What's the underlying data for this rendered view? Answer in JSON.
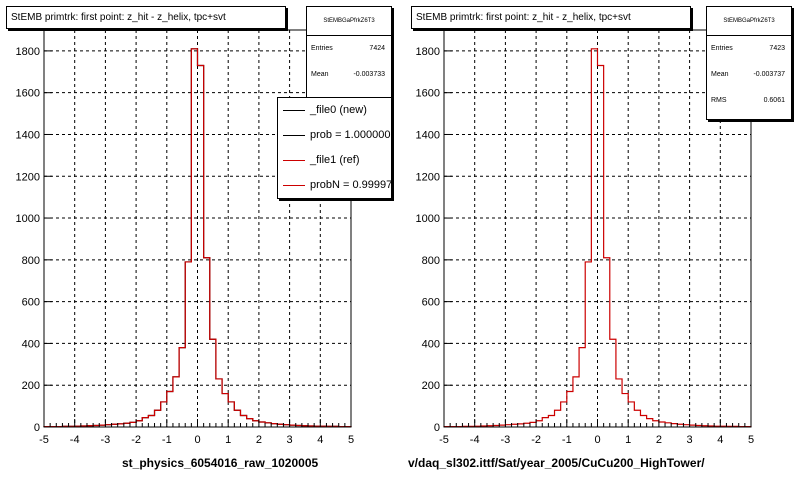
{
  "pads": [
    {
      "title": "StEMB primtrk: first point: z_hit - z_helix, tpc+svt",
      "stats": {
        "name": "StEMBGaPfrkZ6T3",
        "rows": [
          {
            "key": "Entries",
            "value": "7424"
          },
          {
            "key": "Mean",
            "value": "-0.003733"
          }
        ]
      },
      "legend": [
        {
          "label": "_file0 (new)",
          "color": "#000000"
        },
        {
          "label": "prob = 1.000000",
          "color": "#000000"
        },
        {
          "label": "_file1 (ref)",
          "color": "#cc0000"
        },
        {
          "label": "probN = 0.99997",
          "color": "#cc0000"
        }
      ],
      "xlabel": "st_physics_6054016_raw_1020005"
    },
    {
      "title": "StEMB primtrk: first point: z_hit - z_helix, tpc+svt",
      "stats": {
        "name": "StEMBGaPfrkZ6T3",
        "rows": [
          {
            "key": "Entries",
            "value": "7423"
          },
          {
            "key": "Mean",
            "value": "-0.003737"
          },
          {
            "key": "RMS",
            "value": "0.6061"
          }
        ]
      },
      "legend": [],
      "xlabel": "v/daq_sl302.ittf/Sat/year_2005/CuCu200_HighTower/"
    }
  ],
  "colors": {
    "new": "#000000",
    "ref": "#cc0000",
    "frame": "#000000"
  },
  "chart_data": [
    {
      "type": "histogram",
      "title": "StEMB primtrk: first point: z_hit - z_helix, tpc+svt",
      "xlabel": "st_physics_6054016_raw_1020005",
      "ylabel": "",
      "xlim": [
        -5,
        5
      ],
      "ylim": [
        0,
        1900
      ],
      "x_ticks": [
        -5,
        -4,
        -3,
        -2,
        -1,
        0,
        1,
        2,
        3,
        4,
        5
      ],
      "y_ticks": [
        0,
        200,
        400,
        600,
        800,
        1000,
        1200,
        1400,
        1600,
        1800
      ],
      "grid": true,
      "bin_edges": [
        -5,
        -4.8,
        -4.6,
        -4.4,
        -4.2,
        -4,
        -3.8,
        -3.6,
        -3.4,
        -3.2,
        -3,
        -2.8,
        -2.6,
        -2.4,
        -2.2,
        -2,
        -1.8,
        -1.6,
        -1.4,
        -1.2,
        -1,
        -0.8,
        -0.6,
        -0.4,
        -0.2,
        0,
        0.2,
        0.4,
        0.6,
        0.8,
        1,
        1.2,
        1.4,
        1.6,
        1.8,
        2,
        2.2,
        2.4,
        2.6,
        2.8,
        3,
        3.2,
        3.4,
        3.6,
        3.8,
        4,
        4.2,
        4.4,
        4.6,
        4.8,
        5
      ],
      "series": [
        {
          "name": "_file0 (new)",
          "color": "#000000",
          "values": [
            2,
            2,
            2,
            3,
            3,
            4,
            5,
            6,
            7,
            9,
            11,
            13,
            15,
            18,
            22,
            30,
            45,
            55,
            80,
            120,
            170,
            240,
            380,
            790,
            1810,
            1730,
            810,
            420,
            230,
            160,
            120,
            80,
            55,
            40,
            30,
            24,
            20,
            16,
            13,
            11,
            9,
            7,
            6,
            5,
            4,
            4,
            3,
            3,
            2,
            2
          ]
        },
        {
          "name": "_file1 (ref)",
          "color": "#cc0000",
          "values": [
            2,
            2,
            2,
            3,
            3,
            4,
            5,
            6,
            7,
            9,
            11,
            13,
            15,
            18,
            22,
            30,
            45,
            55,
            80,
            120,
            170,
            240,
            380,
            790,
            1810,
            1730,
            810,
            420,
            230,
            160,
            120,
            80,
            55,
            40,
            30,
            24,
            20,
            16,
            13,
            11,
            9,
            7,
            6,
            5,
            4,
            4,
            3,
            3,
            2,
            2
          ]
        }
      ]
    },
    {
      "type": "histogram",
      "title": "StEMB primtrk: first point: z_hit - z_helix, tpc+svt",
      "xlabel": "v/daq_sl302.ittf/Sat/year_2005/CuCu200_HighTower/",
      "ylabel": "",
      "xlim": [
        -5,
        5
      ],
      "ylim": [
        0,
        1900
      ],
      "x_ticks": [
        -5,
        -4,
        -3,
        -2,
        -1,
        0,
        1,
        2,
        3,
        4,
        5
      ],
      "y_ticks": [
        0,
        200,
        400,
        600,
        800,
        1000,
        1200,
        1400,
        1600,
        1800
      ],
      "grid": true,
      "bin_edges": [
        -5,
        -4.8,
        -4.6,
        -4.4,
        -4.2,
        -4,
        -3.8,
        -3.6,
        -3.4,
        -3.2,
        -3,
        -2.8,
        -2.6,
        -2.4,
        -2.2,
        -2,
        -1.8,
        -1.6,
        -1.4,
        -1.2,
        -1,
        -0.8,
        -0.6,
        -0.4,
        -0.2,
        0,
        0.2,
        0.4,
        0.6,
        0.8,
        1,
        1.2,
        1.4,
        1.6,
        1.8,
        2,
        2.2,
        2.4,
        2.6,
        2.8,
        3,
        3.2,
        3.4,
        3.6,
        3.8,
        4,
        4.2,
        4.4,
        4.6,
        4.8,
        5
      ],
      "series": [
        {
          "name": "",
          "color": "#cc0000",
          "values": [
            2,
            2,
            2,
            3,
            3,
            4,
            5,
            6,
            7,
            9,
            11,
            13,
            15,
            18,
            22,
            30,
            45,
            55,
            80,
            120,
            170,
            240,
            380,
            790,
            1810,
            1730,
            810,
            420,
            230,
            160,
            120,
            80,
            55,
            40,
            30,
            24,
            20,
            16,
            13,
            11,
            9,
            7,
            6,
            5,
            4,
            4,
            3,
            3,
            2,
            2
          ]
        }
      ]
    }
  ]
}
